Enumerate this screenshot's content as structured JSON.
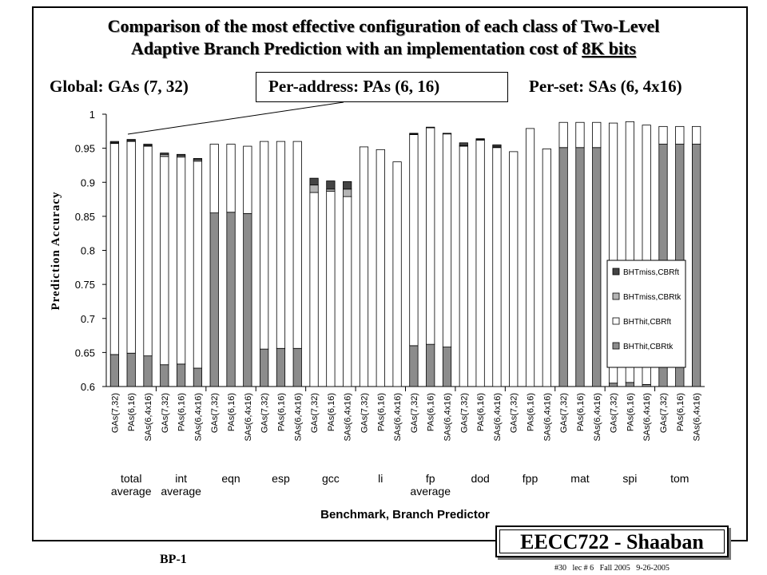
{
  "slide": {
    "title_line1": "Comparison of the most effective configuration of each class of Two-Level",
    "title_line2_prefix": "Adaptive Branch Prediction with an implementation cost of ",
    "title_line2_underlined": "8K bits",
    "global_label": "Global:   GAs (7, 32)",
    "peraddress_label": "Per-address:   PAs (6, 16)",
    "perset_label": "Per-set:  SAs (6, 4x16)",
    "footer_course": "EECC722 - Shaaban",
    "slide_number": "BP-1",
    "lecture_ref": "#30   lec # 6   Fall 2005   9-26-2005"
  },
  "colors": {
    "BHTmiss,CBRft": "#444444",
    "BHTmiss,CBRtk": "#b4b4b4",
    "BHThit,CBRft": "#ffffff",
    "BHThit,CBRtk": "#8c8c8c"
  },
  "chart_data": {
    "type": "bar",
    "stacked": true,
    "xlabel": "Benchmark, Branch Predictor",
    "ylabel": "Prediction Accuracy",
    "ylim": [
      0.6,
      1.0
    ],
    "yticks": [
      "0.6",
      "0.65",
      "0.7",
      "0.75",
      "0.8",
      "0.85",
      "0.9",
      "0.95",
      "1"
    ],
    "grid": false,
    "legend_position": "right-center",
    "legend": [
      "BHTmiss,CBRft",
      "BHTmiss,CBRtk",
      "BHThit,CBRft",
      "BHThit,CBRtk"
    ],
    "predictors": [
      "GAs(7,32)",
      "PAs(6,16)",
      "SAs(6,4x16)"
    ],
    "groups": [
      {
        "label": [
          "total",
          "average"
        ],
        "bars": [
          {
            "BHThit,CBRtk": 0.647,
            "BHThit,CBRft": 0.957,
            "BHTmiss,CBRtk": 0.958,
            "BHTmiss,CBRft": 0.96
          },
          {
            "BHThit,CBRtk": 0.649,
            "BHThit,CBRft": 0.96,
            "BHTmiss,CBRtk": 0.961,
            "BHTmiss,CBRft": 0.963
          },
          {
            "BHThit,CBRtk": 0.645,
            "BHThit,CBRft": 0.953,
            "BHTmiss,CBRtk": 0.954,
            "BHTmiss,CBRft": 0.956
          }
        ]
      },
      {
        "label": [
          "int",
          "average"
        ],
        "bars": [
          {
            "BHThit,CBRtk": 0.632,
            "BHThit,CBRft": 0.938,
            "BHTmiss,CBRtk": 0.941,
            "BHTmiss,CBRft": 0.943
          },
          {
            "BHThit,CBRtk": 0.633,
            "BHThit,CBRft": 0.937,
            "BHTmiss,CBRtk": 0.939,
            "BHTmiss,CBRft": 0.941
          },
          {
            "BHThit,CBRtk": 0.627,
            "BHThit,CBRft": 0.931,
            "BHTmiss,CBRtk": 0.933,
            "BHTmiss,CBRft": 0.935
          }
        ]
      },
      {
        "label": [
          "eqn"
        ],
        "bars": [
          {
            "BHThit,CBRtk": 0.855,
            "BHThit,CBRft": 0.956,
            "BHTmiss,CBRtk": 0.956,
            "BHTmiss,CBRft": 0.956
          },
          {
            "BHThit,CBRtk": 0.856,
            "BHThit,CBRft": 0.956,
            "BHTmiss,CBRtk": 0.956,
            "BHTmiss,CBRft": 0.956
          },
          {
            "BHThit,CBRtk": 0.854,
            "BHThit,CBRft": 0.953,
            "BHTmiss,CBRtk": 0.953,
            "BHTmiss,CBRft": 0.953
          }
        ]
      },
      {
        "label": [
          "esp"
        ],
        "bars": [
          {
            "BHThit,CBRtk": 0.655,
            "BHThit,CBRft": 0.96,
            "BHTmiss,CBRtk": 0.96,
            "BHTmiss,CBRft": 0.96
          },
          {
            "BHThit,CBRtk": 0.656,
            "BHThit,CBRft": 0.96,
            "BHTmiss,CBRtk": 0.96,
            "BHTmiss,CBRft": 0.96
          },
          {
            "BHThit,CBRtk": 0.656,
            "BHThit,CBRft": 0.96,
            "BHTmiss,CBRtk": 0.96,
            "BHTmiss,CBRft": 0.96
          }
        ]
      },
      {
        "label": [
          "gcc"
        ],
        "bars": [
          {
            "BHThit,CBRtk": 0.6,
            "BHThit,CBRft": 0.885,
            "BHTmiss,CBRtk": 0.896,
            "BHTmiss,CBRft": 0.906
          },
          {
            "BHThit,CBRtk": 0.6,
            "BHThit,CBRft": 0.887,
            "BHTmiss,CBRtk": 0.89,
            "BHTmiss,CBRft": 0.902
          },
          {
            "BHThit,CBRtk": 0.6,
            "BHThit,CBRft": 0.879,
            "BHTmiss,CBRtk": 0.89,
            "BHTmiss,CBRft": 0.901
          }
        ]
      },
      {
        "label": [
          "li"
        ],
        "bars": [
          {
            "BHThit,CBRtk": 0.6,
            "BHThit,CBRft": 0.952,
            "BHTmiss,CBRtk": 0.952,
            "BHTmiss,CBRft": 0.952
          },
          {
            "BHThit,CBRtk": 0.6,
            "BHThit,CBRft": 0.948,
            "BHTmiss,CBRtk": 0.948,
            "BHTmiss,CBRft": 0.948
          },
          {
            "BHThit,CBRtk": 0.6,
            "BHThit,CBRft": 0.93,
            "BHTmiss,CBRtk": 0.93,
            "BHTmiss,CBRft": 0.93
          }
        ]
      },
      {
        "label": [
          "fp",
          "average"
        ],
        "bars": [
          {
            "BHThit,CBRtk": 0.66,
            "BHThit,CBRft": 0.97,
            "BHTmiss,CBRtk": 0.971,
            "BHTmiss,CBRft": 0.972
          },
          {
            "BHThit,CBRtk": 0.662,
            "BHThit,CBRft": 0.98,
            "BHTmiss,CBRtk": 0.981,
            "BHTmiss,CBRft": 0.981
          },
          {
            "BHThit,CBRtk": 0.658,
            "BHThit,CBRft": 0.971,
            "BHTmiss,CBRtk": 0.972,
            "BHTmiss,CBRft": 0.972
          }
        ]
      },
      {
        "label": [
          "dod"
        ],
        "bars": [
          {
            "BHThit,CBRtk": 0.6,
            "BHThit,CBRft": 0.953,
            "BHTmiss,CBRtk": 0.954,
            "BHTmiss,CBRft": 0.958
          },
          {
            "BHThit,CBRtk": 0.6,
            "BHThit,CBRft": 0.962,
            "BHTmiss,CBRtk": 0.963,
            "BHTmiss,CBRft": 0.964
          },
          {
            "BHThit,CBRtk": 0.6,
            "BHThit,CBRft": 0.951,
            "BHTmiss,CBRtk": 0.952,
            "BHTmiss,CBRft": 0.955
          }
        ]
      },
      {
        "label": [
          "fpp"
        ],
        "bars": [
          {
            "BHThit,CBRtk": 0.6,
            "BHThit,CBRft": 0.945,
            "BHTmiss,CBRtk": 0.945,
            "BHTmiss,CBRft": 0.945
          },
          {
            "BHThit,CBRtk": 0.6,
            "BHThit,CBRft": 0.979,
            "BHTmiss,CBRtk": 0.979,
            "BHTmiss,CBRft": 0.979
          },
          {
            "BHThit,CBRtk": 0.6,
            "BHThit,CBRft": 0.949,
            "BHTmiss,CBRtk": 0.949,
            "BHTmiss,CBRft": 0.949
          }
        ]
      },
      {
        "label": [
          "mat"
        ],
        "bars": [
          {
            "BHThit,CBRtk": 0.951,
            "BHThit,CBRft": 0.988,
            "BHTmiss,CBRtk": 0.988,
            "BHTmiss,CBRft": 0.988
          },
          {
            "BHThit,CBRtk": 0.951,
            "BHThit,CBRft": 0.988,
            "BHTmiss,CBRtk": 0.988,
            "BHTmiss,CBRft": 0.988
          },
          {
            "BHThit,CBRtk": 0.951,
            "BHThit,CBRft": 0.988,
            "BHTmiss,CBRtk": 0.988,
            "BHTmiss,CBRft": 0.988
          }
        ]
      },
      {
        "label": [
          "spi"
        ],
        "bars": [
          {
            "BHThit,CBRtk": 0.605,
            "BHThit,CBRft": 0.987,
            "BHTmiss,CBRtk": 0.987,
            "BHTmiss,CBRft": 0.987
          },
          {
            "BHThit,CBRtk": 0.606,
            "BHThit,CBRft": 0.989,
            "BHTmiss,CBRtk": 0.989,
            "BHTmiss,CBRft": 0.989
          },
          {
            "BHThit,CBRtk": 0.603,
            "BHThit,CBRft": 0.984,
            "BHTmiss,CBRtk": 0.984,
            "BHTmiss,CBRft": 0.984
          }
        ]
      },
      {
        "label": [
          "tom"
        ],
        "bars": [
          {
            "BHThit,CBRtk": 0.956,
            "BHThit,CBRft": 0.982,
            "BHTmiss,CBRtk": 0.982,
            "BHTmiss,CBRft": 0.982
          },
          {
            "BHThit,CBRtk": 0.956,
            "BHThit,CBRft": 0.982,
            "BHTmiss,CBRtk": 0.982,
            "BHTmiss,CBRft": 0.982
          },
          {
            "BHThit,CBRtk": 0.956,
            "BHThit,CBRft": 0.982,
            "BHTmiss,CBRtk": 0.982,
            "BHTmiss,CBRft": 0.982
          }
        ]
      }
    ]
  }
}
